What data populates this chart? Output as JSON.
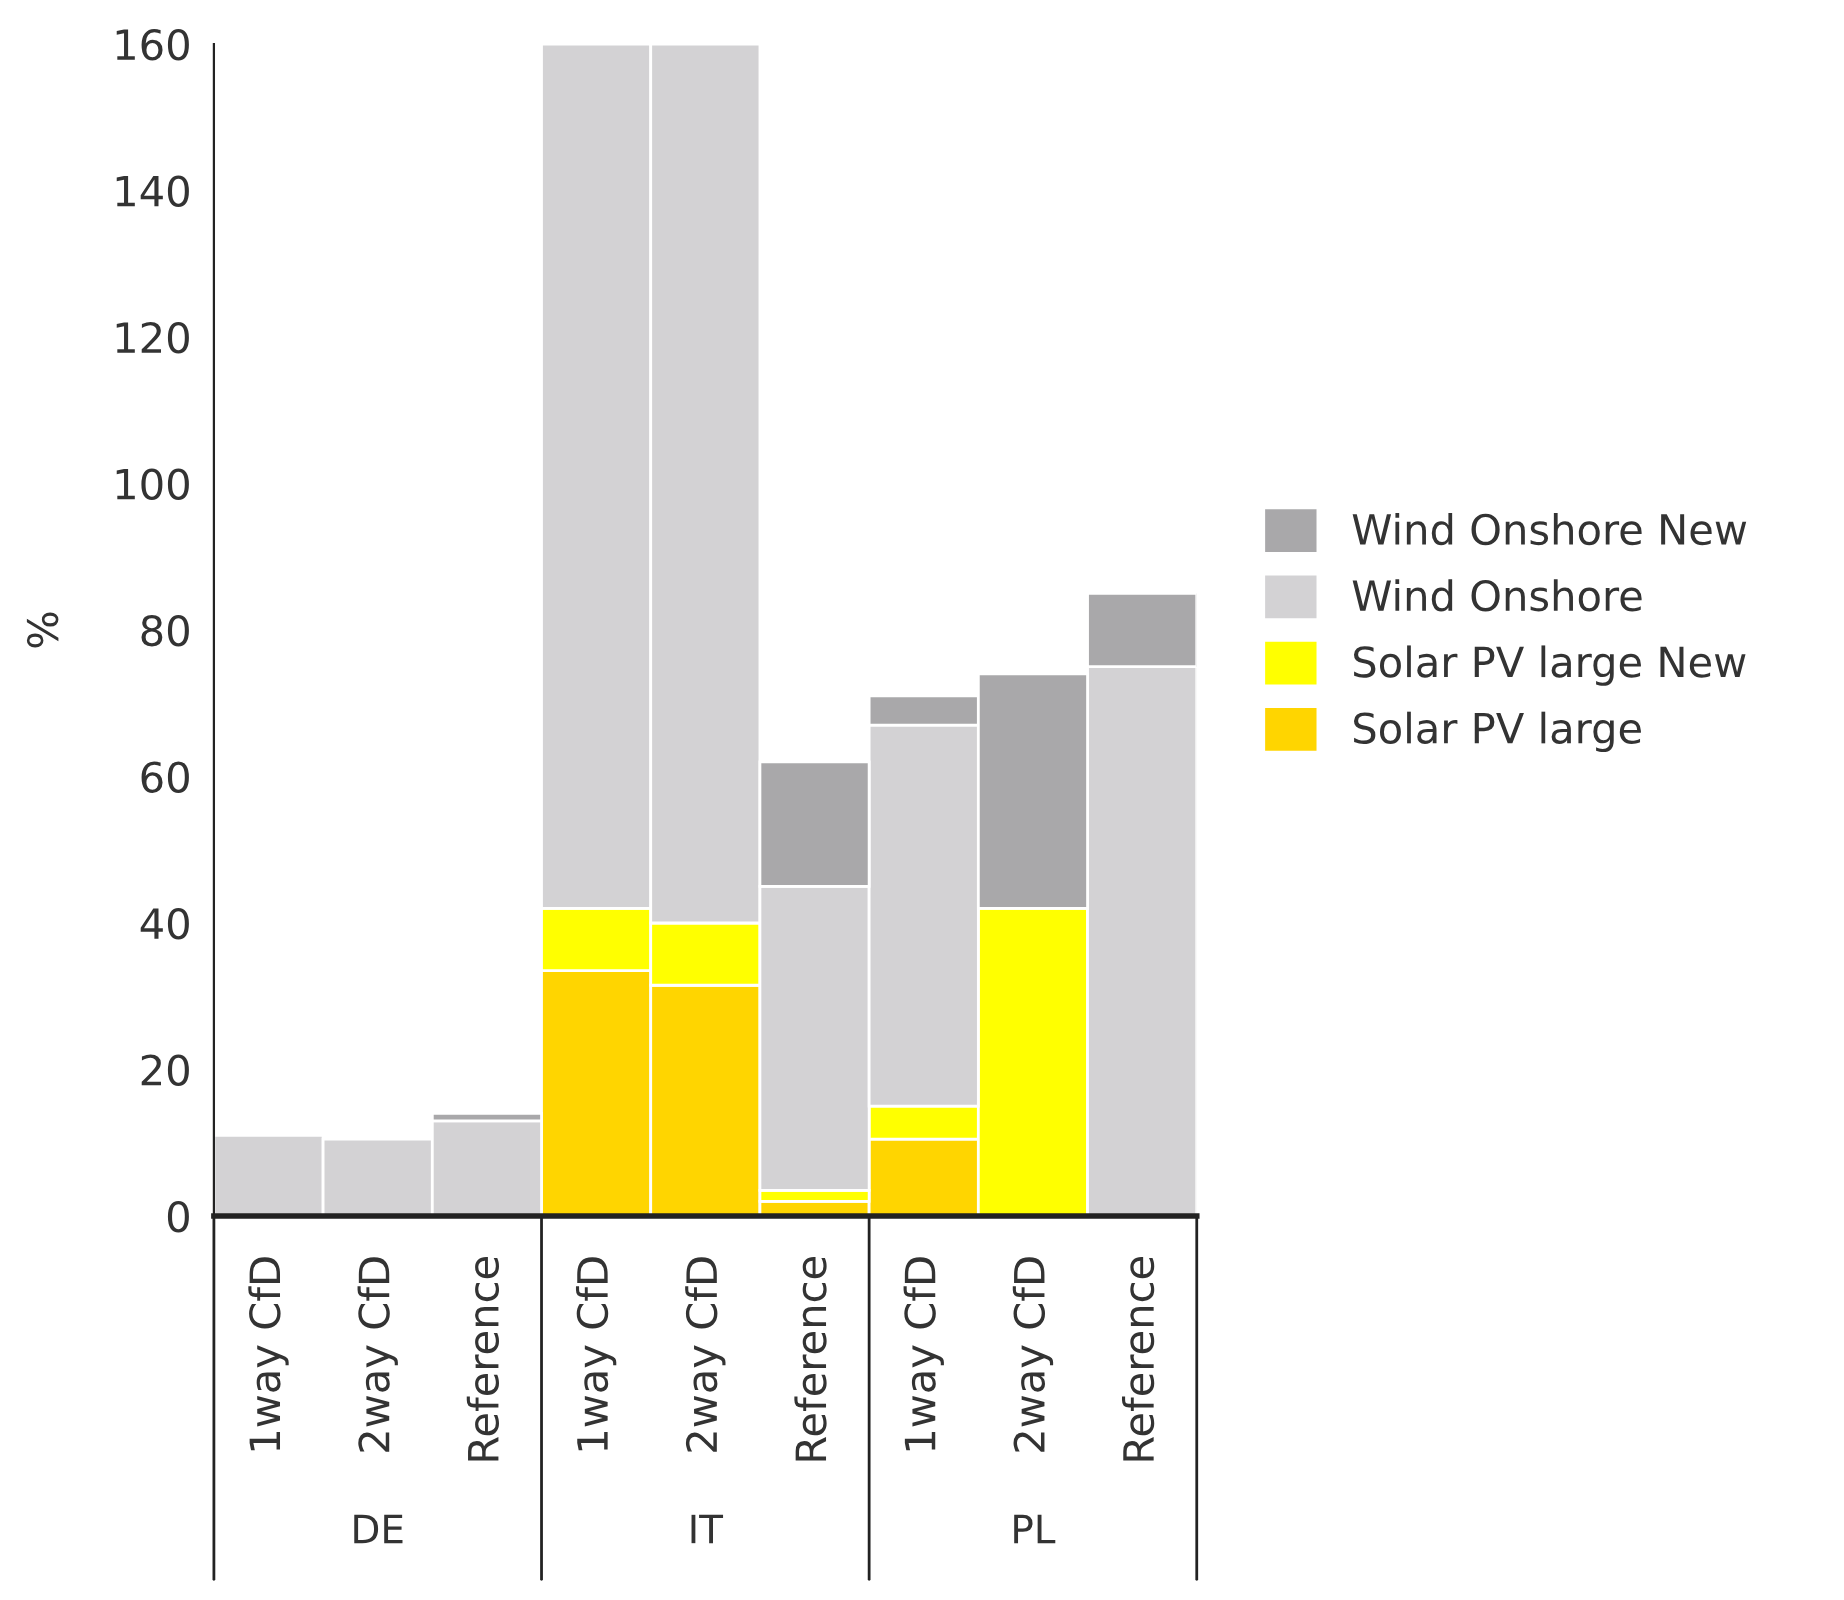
{
  "chart_data": {
    "type": "bar",
    "stacked": true,
    "ylabel": "%",
    "categories": [
      "1way CfD",
      "2way CfD",
      "Reference",
      "1way CfD",
      "2way CfD",
      "Reference",
      "1way CfD",
      "2way CfD",
      "Reference"
    ],
    "series": [
      {
        "name": "Solar PV large",
        "color": "#ffd500",
        "values": [
          0,
          0,
          0,
          33.5,
          31.5,
          2,
          10.5,
          0,
          0
        ]
      },
      {
        "name": "Solar PV large New",
        "color": "#ffff00",
        "values": [
          0,
          0,
          0,
          8.5,
          8.5,
          1.5,
          4.5,
          42,
          0
        ]
      },
      {
        "name": "Wind Onshore",
        "color": "#d3d2d4",
        "values": [
          11,
          10.5,
          13,
          118,
          120,
          41.5,
          52,
          0,
          75
        ]
      },
      {
        "name": "Wind Onshore New",
        "color": "#a9a8aa",
        "values": [
          0,
          0,
          1,
          0,
          0,
          17,
          4,
          32,
          10
        ]
      }
    ],
    "ylim": [
      0,
      160
    ],
    "yticks": [
      0,
      20,
      40,
      60,
      80,
      100,
      120,
      140,
      160
    ],
    "annotations": [
      "DE",
      "IT",
      "PL"
    ],
    "legend": "right",
    "grid": false
  }
}
